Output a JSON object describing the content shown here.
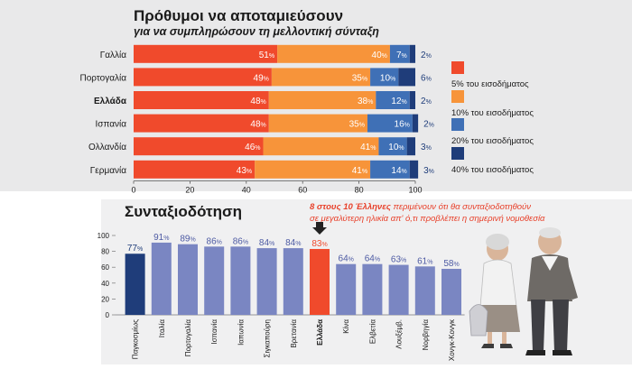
{
  "colors": {
    "red": "#f04a2c",
    "orange": "#f7943a",
    "blue": "#3f70b6",
    "navy": "#1f3d7a",
    "lavender": "#7a86c2",
    "highlight_red": "#f04a2c",
    "panel_bg": "#e9e9ea",
    "bottom_bg": "#f0f0f1",
    "headline_red": "#e8402a",
    "text_dark": "#1a1a1a"
  },
  "chart_data": [
    {
      "type": "bar",
      "orientation": "horizontal",
      "stacked": true,
      "title": "Πρόθυμοι να αποταμιεύσουν",
      "subtitle": "για να συμπληρώσουν τη μελλοντική σύνταξη",
      "categories": [
        "Γαλλία",
        "Πορτογαλία",
        "Ελλάδα",
        "Ισπανία",
        "Ολλανδία",
        "Γερμανία"
      ],
      "highlight_category": "Ελλάδα",
      "series": [
        {
          "name": "5% του εισοδήματος",
          "color": "#f04a2c",
          "values": [
            51,
            49,
            48,
            48,
            46,
            43
          ]
        },
        {
          "name": "10% του εισοδήματος",
          "color": "#f7943a",
          "values": [
            40,
            35,
            38,
            35,
            41,
            41
          ]
        },
        {
          "name": "20% του εισοδήματος",
          "color": "#3f70b6",
          "values": [
            7,
            10,
            12,
            16,
            10,
            14
          ]
        },
        {
          "name": "40% του εισοδήματος",
          "color": "#1f3d7a",
          "values": [
            2,
            6,
            2,
            2,
            3,
            3
          ]
        }
      ],
      "x_ticks": [
        0,
        20,
        40,
        60,
        80,
        100
      ],
      "xlim": [
        0,
        100
      ],
      "value_suffix": "%",
      "legend_position": "right"
    },
    {
      "type": "bar",
      "orientation": "vertical",
      "title": "Συνταξιοδότηση",
      "categories": [
        "Παγκοσμίως",
        "Ιταλία",
        "Πορτογαλία",
        "Ισπανία",
        "Ιαπωνία",
        "Σιγκαπούρη",
        "Βρετανία",
        "Ελλάδα",
        "Κίνα",
        "Ελβετία",
        "Λουξέμβ.",
        "Νορβηγία",
        "Χονγκ-Κονγκ"
      ],
      "values": [
        77,
        91,
        89,
        86,
        86,
        84,
        84,
        83,
        64,
        64,
        63,
        61,
        58
      ],
      "highlight_category": "Ελλάδα",
      "first_category_color": "#1f3d7a",
      "bar_color": "#7a86c2",
      "highlight_color": "#f04a2c",
      "y_ticks": [
        0,
        20,
        40,
        60,
        80,
        100
      ],
      "ylim": [
        0,
        100
      ],
      "value_suffix": "%",
      "annotation": {
        "text_line1": "8 στους 10 Έλληνες",
        "text_rest_line1": " περιμένουν ότι θα συνταξιοδοτηθούν",
        "text_line2": "σε μεγαλύτερη ηλικία απ' ό,τι προβλέπει η σημερινή νομοθεσία"
      }
    }
  ]
}
